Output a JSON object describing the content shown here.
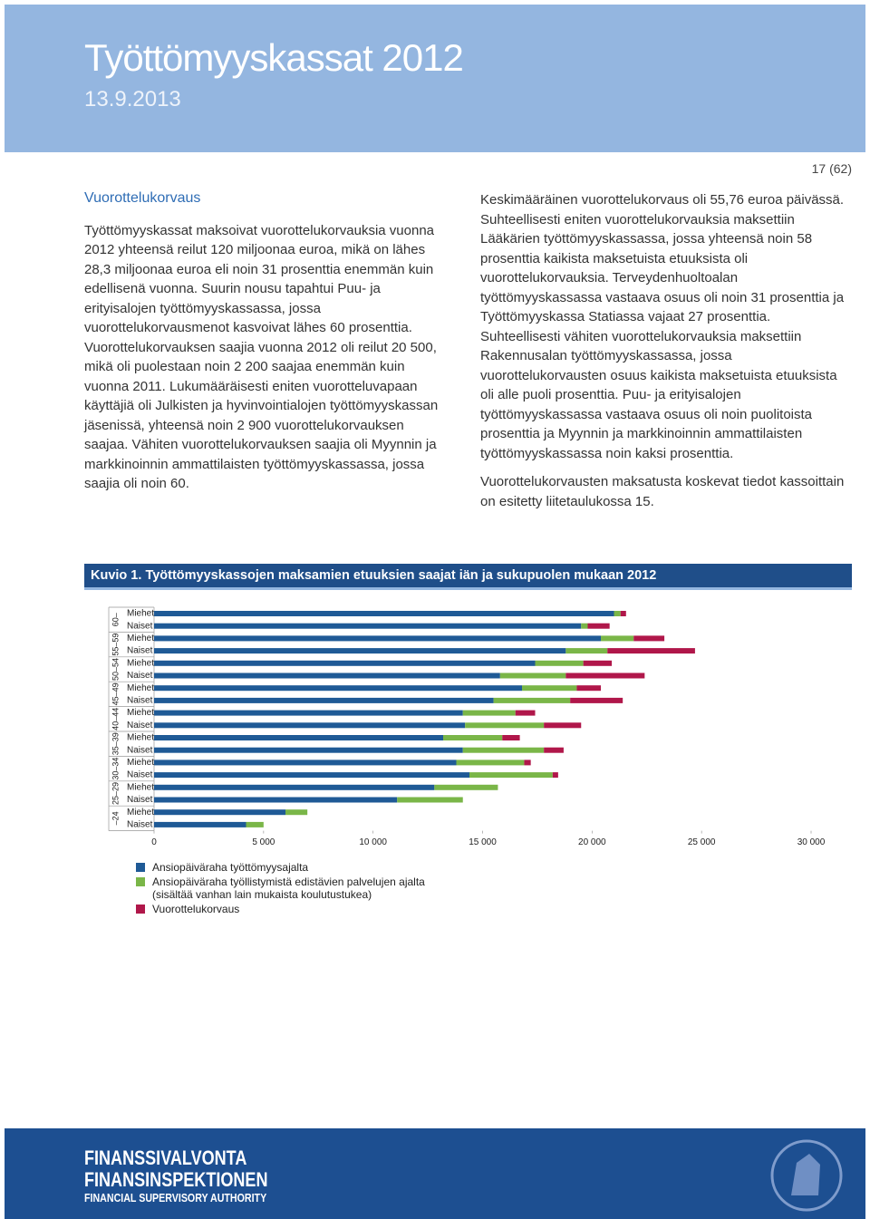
{
  "header": {
    "title": "Työttömyyskassat 2012",
    "date": "13.9.2013"
  },
  "page_number": "17 (62)",
  "left_column": {
    "heading": "Vuorottelukorvaus",
    "paragraph": "Työttömyyskassat maksoivat vuorottelukorvauksia vuonna 2012 yhteensä reilut 120 miljoonaa euroa, mikä on lähes 28,3 miljoonaa euroa eli noin 31 prosenttia enemmän kuin edellisenä vuonna. Suurin nousu tapahtui Puu- ja erityisalojen työttömyyskassassa, jossa vuorottelukorvausmenot kasvoivat lähes 60 prosenttia. Vuorottelukorvauksen saajia vuonna 2012 oli reilut 20 500, mikä oli puolestaan noin 2 200 saajaa enemmän kuin vuonna 2011. Lukumääräisesti eniten vuorotteluvapaan käyttäjiä oli Julkisten ja hyvinvointialojen työttömyyskassan jäsenissä, yhteensä noin 2 900 vuorottelukorvauksen saajaa. Vähiten vuorottelukorvauksen saajia oli Myynnin ja markkinoinnin ammattilaisten työttömyyskassassa, jossa saajia oli noin 60."
  },
  "right_column": {
    "paragraphs": [
      "Keskimääräinen vuorottelukorvaus oli 55,76 euroa päivässä. Suhteellisesti eniten vuorottelukorvauksia maksettiin Lääkärien työttömyyskassassa, jossa yhteensä noin 58 prosenttia kaikista maksetuista etuuksista oli vuorottelukorvauksia. Terveydenhuoltoalan työttömyyskassassa vastaava osuus oli noin 31 prosenttia ja Työttömyyskassa Statiassa vajaat 27 prosenttia. Suhteellisesti vähiten vuorottelukorvauksia maksettiin Rakennusalan työttömyyskassassa, jossa vuorottelukorvausten osuus kaikista maksetuista etuuksista oli alle puoli prosenttia. Puu- ja erityisalojen työttömyyskassassa vastaava osuus oli noin puolitoista prosenttia ja Myynnin ja markkinoinnin ammattilaisten työttömyyskassassa noin kaksi prosenttia.",
      "Vuorottelukorvausten maksatusta koskevat tiedot kassoittain on esitetty liitetaulukossa 15."
    ]
  },
  "figure": {
    "label": "Kuvio 1.",
    "title": "Työttömyyskassojen maksamien etuuksien saajat iän ja sukupuolen mukaan 2012"
  },
  "chart_data": {
    "type": "bar",
    "orientation": "horizontal",
    "stacked": true,
    "groups": [
      "60–",
      "55–59",
      "50–54",
      "45–49",
      "40–44",
      "35–39",
      "30–34",
      "25–29",
      "–24"
    ],
    "categories": [
      "Miehet",
      "Naiset",
      "Miehet",
      "Naiset",
      "Miehet",
      "Naiset",
      "Miehet",
      "Naiset",
      "Miehet",
      "Naiset",
      "Miehet",
      "Naiset",
      "Miehet",
      "Naiset",
      "Miehet",
      "Naiset",
      "Miehet",
      "Naiset"
    ],
    "series": [
      {
        "name": "Ansiopäiväraha työttömyysajalta",
        "color": "#1f5a96",
        "values": [
          21000,
          19500,
          20400,
          18800,
          17400,
          15800,
          16800,
          15500,
          14100,
          14200,
          13200,
          14100,
          13800,
          14400,
          12800,
          11100,
          6000,
          4200
        ]
      },
      {
        "name": "Ansiopäiväraha työllistymistä edistävien palvelujen ajalta (sisältää vanhan lain mukaista koulutustukea)",
        "color": "#7ab648",
        "values": [
          300,
          300,
          1500,
          1900,
          2200,
          3000,
          2500,
          3500,
          2400,
          3600,
          2700,
          3700,
          3100,
          3800,
          2900,
          3000,
          1000,
          800
        ]
      },
      {
        "name": "Vuorottelukorvaus",
        "color": "#b0174a",
        "values": [
          250,
          1000,
          1400,
          4000,
          1300,
          3600,
          1100,
          2400,
          900,
          1700,
          800,
          900,
          300,
          250,
          0,
          0,
          0,
          0
        ]
      }
    ],
    "xlim": [
      0,
      30000
    ],
    "xticks": [
      0,
      {
        "value": 5000,
        "label": "5 000"
      },
      {
        "value": 10000,
        "label": "10 000"
      },
      {
        "value": 15000,
        "label": "15 000"
      },
      {
        "value": 20000,
        "label": "20 000"
      },
      {
        "value": 25000,
        "label": "25 000"
      },
      {
        "value": 30000,
        "label": "30 000"
      }
    ],
    "grid": false
  },
  "footer": {
    "lines": [
      "FINANSSIVALVONTA",
      "FINANSINSPEKTIONEN",
      "FINANCIAL SUPERVISORY AUTHORITY"
    ]
  }
}
